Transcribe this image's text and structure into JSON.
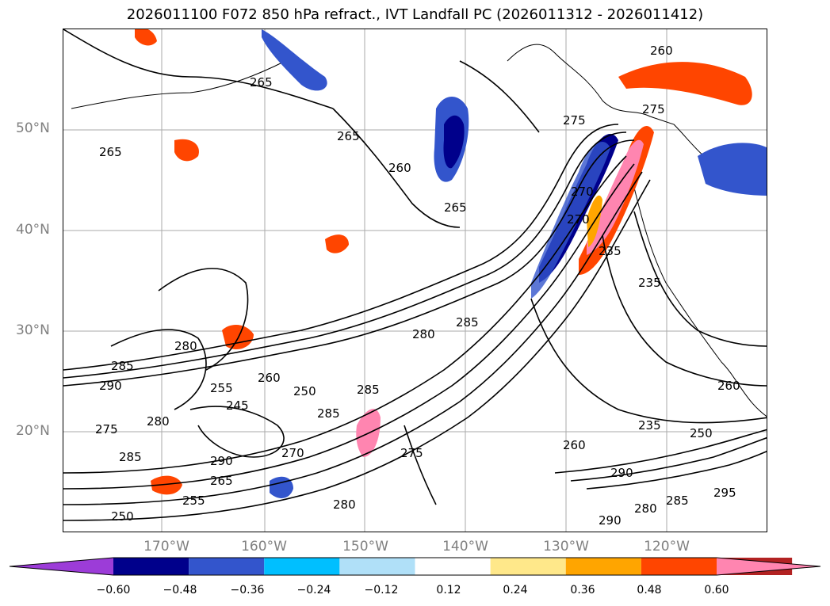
{
  "title": "2026011100 F072 850 hPa refract., IVT Landfall PC (2026011312 - 2026011412)",
  "lat_labels": [
    "50°N",
    "40°N",
    "30°N",
    "20°N"
  ],
  "lon_labels": [
    "170°W",
    "160°W",
    "150°W",
    "140°W",
    "130°W",
    "120°W"
  ],
  "contour_labels": [
    "260",
    "265",
    "265",
    "265",
    "260",
    "265",
    "275",
    "275",
    "270",
    "285",
    "280",
    "285",
    "290",
    "285",
    "280",
    "260",
    "250",
    "245",
    "255",
    "280",
    "275",
    "285",
    "285",
    "290",
    "265",
    "255",
    "250",
    "280",
    "270",
    "275",
    "260",
    "235",
    "235",
    "235",
    "280",
    "290",
    "285",
    "295",
    "290",
    "260",
    "250",
    "270"
  ],
  "colorbar": {
    "ticks": [
      "−0.60",
      "−0.48",
      "−0.36",
      "−0.24",
      "−0.12",
      "0.12",
      "0.24",
      "0.36",
      "0.48",
      "0.60"
    ],
    "colors": [
      "#9c3cd8",
      "#00008b",
      "#3355cc",
      "#00bfff",
      "#b0e0f8",
      "#ffffff",
      "#ffe88a",
      "#ffa500",
      "#ff4500",
      "#b22222",
      "#ff85b0"
    ]
  }
}
